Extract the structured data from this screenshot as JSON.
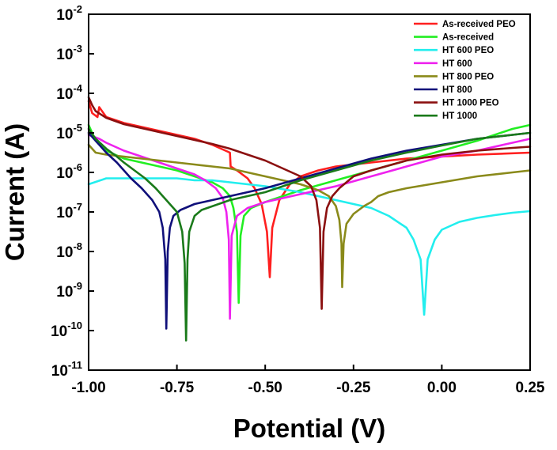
{
  "chart_data": {
    "type": "line",
    "title": "",
    "xlabel": "Potential (V)",
    "ylabel": "Current (A)",
    "xlim": [
      -1.0,
      0.25
    ],
    "ylim": [
      1e-11,
      0.01
    ],
    "yscale": "log",
    "grid": false,
    "legend_position": "top-right",
    "x_ticks": [
      {
        "value": -1.0,
        "label": "-1.00"
      },
      {
        "value": -0.75,
        "label": "-0.75"
      },
      {
        "value": -0.5,
        "label": "-0.50"
      },
      {
        "value": -0.25,
        "label": "-0.25"
      },
      {
        "value": 0.0,
        "label": "0.00"
      },
      {
        "value": 0.25,
        "label": "0.25"
      }
    ],
    "y_ticks": [
      {
        "exp": -11,
        "base": "10",
        "sup": "-11"
      },
      {
        "exp": -10,
        "base": "10",
        "sup": "-10"
      },
      {
        "exp": -9,
        "base": "10",
        "sup": "-9"
      },
      {
        "exp": -8,
        "base": "10",
        "sup": "-8"
      },
      {
        "exp": -7,
        "base": "10",
        "sup": "-7"
      },
      {
        "exp": -6,
        "base": "10",
        "sup": "-6"
      },
      {
        "exp": -5,
        "base": "10",
        "sup": "-5"
      },
      {
        "exp": -4,
        "base": "10",
        "sup": "-4"
      },
      {
        "exp": -3,
        "base": "10",
        "sup": "-3"
      },
      {
        "exp": -2,
        "base": "10",
        "sup": "-2"
      }
    ],
    "series": [
      {
        "name": "As-received PEO",
        "color": "#ff1f1f",
        "points": [
          [
            -1.0,
            -4.2
          ],
          [
            -0.99,
            -4.5
          ],
          [
            -0.975,
            -4.6
          ],
          [
            -0.97,
            -4.35
          ],
          [
            -0.95,
            -4.6
          ],
          [
            -0.9,
            -4.75
          ],
          [
            -0.85,
            -4.85
          ],
          [
            -0.8,
            -4.95
          ],
          [
            -0.75,
            -5.05
          ],
          [
            -0.7,
            -5.15
          ],
          [
            -0.65,
            -5.3
          ],
          [
            -0.6,
            -5.5
          ],
          [
            -0.598,
            -5.85
          ],
          [
            -0.58,
            -5.95
          ],
          [
            -0.55,
            -6.15
          ],
          [
            -0.53,
            -6.4
          ],
          [
            -0.51,
            -6.8
          ],
          [
            -0.495,
            -7.5
          ],
          [
            -0.487,
            -8.65
          ],
          [
            -0.48,
            -7.4
          ],
          [
            -0.46,
            -6.7
          ],
          [
            -0.43,
            -6.3
          ],
          [
            -0.4,
            -6.1
          ],
          [
            -0.35,
            -5.95
          ],
          [
            -0.3,
            -5.85
          ],
          [
            -0.2,
            -5.75
          ],
          [
            -0.1,
            -5.65
          ],
          [
            0.0,
            -5.6
          ],
          [
            0.1,
            -5.55
          ],
          [
            0.25,
            -5.5
          ]
        ]
      },
      {
        "name": "As-received",
        "color": "#22ee22",
        "points": [
          [
            -1.0,
            -4.8
          ],
          [
            -0.98,
            -5.2
          ],
          [
            -0.95,
            -5.45
          ],
          [
            -0.9,
            -5.65
          ],
          [
            -0.85,
            -5.75
          ],
          [
            -0.8,
            -5.85
          ],
          [
            -0.75,
            -5.95
          ],
          [
            -0.7,
            -6.1
          ],
          [
            -0.65,
            -6.25
          ],
          [
            -0.62,
            -6.4
          ],
          [
            -0.6,
            -6.6
          ],
          [
            -0.59,
            -6.9
          ],
          [
            -0.58,
            -7.5
          ],
          [
            -0.575,
            -9.3
          ],
          [
            -0.57,
            -7.6
          ],
          [
            -0.56,
            -7.1
          ],
          [
            -0.54,
            -6.9
          ],
          [
            -0.5,
            -6.75
          ],
          [
            -0.45,
            -6.6
          ],
          [
            -0.4,
            -6.45
          ],
          [
            -0.3,
            -6.2
          ],
          [
            -0.2,
            -5.95
          ],
          [
            -0.1,
            -5.7
          ],
          [
            0.0,
            -5.45
          ],
          [
            0.1,
            -5.2
          ],
          [
            0.2,
            -4.9
          ],
          [
            0.25,
            -4.8
          ]
        ]
      },
      {
        "name": "HT 600 PEO",
        "color": "#22eeee",
        "points": [
          [
            -1.0,
            -6.3
          ],
          [
            -0.95,
            -6.15
          ],
          [
            -0.9,
            -6.15
          ],
          [
            -0.85,
            -6.15
          ],
          [
            -0.8,
            -6.15
          ],
          [
            -0.75,
            -6.15
          ],
          [
            -0.7,
            -6.2
          ],
          [
            -0.65,
            -6.2
          ],
          [
            -0.6,
            -6.25
          ],
          [
            -0.5,
            -6.35
          ],
          [
            -0.4,
            -6.5
          ],
          [
            -0.3,
            -6.7
          ],
          [
            -0.2,
            -6.9
          ],
          [
            -0.15,
            -7.1
          ],
          [
            -0.1,
            -7.4
          ],
          [
            -0.08,
            -7.7
          ],
          [
            -0.06,
            -8.2
          ],
          [
            -0.05,
            -9.6
          ],
          [
            -0.04,
            -8.2
          ],
          [
            -0.02,
            -7.7
          ],
          [
            0.0,
            -7.45
          ],
          [
            0.05,
            -7.25
          ],
          [
            0.1,
            -7.15
          ],
          [
            0.15,
            -7.08
          ],
          [
            0.2,
            -7.02
          ],
          [
            0.25,
            -6.98
          ]
        ]
      },
      {
        "name": "HT 600",
        "color": "#ee22ee",
        "points": [
          [
            -1.0,
            -5.05
          ],
          [
            -0.97,
            -5.15
          ],
          [
            -0.95,
            -5.25
          ],
          [
            -0.9,
            -5.45
          ],
          [
            -0.85,
            -5.6
          ],
          [
            -0.8,
            -5.75
          ],
          [
            -0.75,
            -5.9
          ],
          [
            -0.7,
            -6.05
          ],
          [
            -0.67,
            -6.2
          ],
          [
            -0.64,
            -6.4
          ],
          [
            -0.62,
            -6.65
          ],
          [
            -0.61,
            -7.0
          ],
          [
            -0.603,
            -7.7
          ],
          [
            -0.6,
            -9.7
          ],
          [
            -0.595,
            -7.6
          ],
          [
            -0.58,
            -7.1
          ],
          [
            -0.55,
            -6.9
          ],
          [
            -0.5,
            -6.75
          ],
          [
            -0.45,
            -6.65
          ],
          [
            -0.4,
            -6.55
          ],
          [
            -0.3,
            -6.35
          ],
          [
            -0.2,
            -6.1
          ],
          [
            -0.1,
            -5.85
          ],
          [
            0.0,
            -5.6
          ],
          [
            0.1,
            -5.45
          ],
          [
            0.2,
            -5.25
          ],
          [
            0.25,
            -5.15
          ]
        ]
      },
      {
        "name": "HT 800 PEO",
        "color": "#8a8a1a",
        "points": [
          [
            -1.0,
            -5.3
          ],
          [
            -0.98,
            -5.5
          ],
          [
            -0.95,
            -5.55
          ],
          [
            -0.9,
            -5.6
          ],
          [
            -0.85,
            -5.65
          ],
          [
            -0.8,
            -5.7
          ],
          [
            -0.75,
            -5.75
          ],
          [
            -0.7,
            -5.8
          ],
          [
            -0.65,
            -5.85
          ],
          [
            -0.6,
            -5.9
          ],
          [
            -0.55,
            -6.0
          ],
          [
            -0.5,
            -6.1
          ],
          [
            -0.45,
            -6.2
          ],
          [
            -0.4,
            -6.3
          ],
          [
            -0.35,
            -6.45
          ],
          [
            -0.32,
            -6.6
          ],
          [
            -0.3,
            -6.85
          ],
          [
            -0.29,
            -7.2
          ],
          [
            -0.284,
            -7.8
          ],
          [
            -0.282,
            -8.9
          ],
          [
            -0.278,
            -7.8
          ],
          [
            -0.27,
            -7.3
          ],
          [
            -0.25,
            -7.05
          ],
          [
            -0.22,
            -6.85
          ],
          [
            -0.2,
            -6.75
          ],
          [
            -0.18,
            -6.6
          ],
          [
            -0.15,
            -6.5
          ],
          [
            -0.1,
            -6.4
          ],
          [
            0.0,
            -6.25
          ],
          [
            0.1,
            -6.1
          ],
          [
            0.2,
            -6.0
          ],
          [
            0.25,
            -5.95
          ]
        ]
      },
      {
        "name": "HT 800",
        "color": "#10107a",
        "points": [
          [
            -1.0,
            -5.0
          ],
          [
            -0.98,
            -5.2
          ],
          [
            -0.95,
            -5.5
          ],
          [
            -0.92,
            -5.75
          ],
          [
            -0.9,
            -5.95
          ],
          [
            -0.88,
            -6.15
          ],
          [
            -0.85,
            -6.4
          ],
          [
            -0.82,
            -6.7
          ],
          [
            -0.8,
            -7.0
          ],
          [
            -0.79,
            -7.4
          ],
          [
            -0.783,
            -8.2
          ],
          [
            -0.78,
            -9.95
          ],
          [
            -0.776,
            -8.0
          ],
          [
            -0.77,
            -7.4
          ],
          [
            -0.76,
            -7.1
          ],
          [
            -0.74,
            -6.95
          ],
          [
            -0.7,
            -6.8
          ],
          [
            -0.6,
            -6.6
          ],
          [
            -0.5,
            -6.4
          ],
          [
            -0.4,
            -6.15
          ],
          [
            -0.3,
            -5.9
          ],
          [
            -0.2,
            -5.65
          ],
          [
            -0.1,
            -5.45
          ],
          [
            0.0,
            -5.3
          ],
          [
            0.1,
            -5.15
          ],
          [
            0.2,
            -5.05
          ],
          [
            0.25,
            -5.0
          ]
        ]
      },
      {
        "name": "HT 1000 PEO",
        "color": "#8b1010",
        "points": [
          [
            -1.0,
            -4.1
          ],
          [
            -0.99,
            -4.3
          ],
          [
            -0.98,
            -4.45
          ],
          [
            -0.95,
            -4.62
          ],
          [
            -0.9,
            -4.78
          ],
          [
            -0.85,
            -4.88
          ],
          [
            -0.8,
            -4.98
          ],
          [
            -0.75,
            -5.08
          ],
          [
            -0.7,
            -5.18
          ],
          [
            -0.65,
            -5.28
          ],
          [
            -0.6,
            -5.4
          ],
          [
            -0.55,
            -5.55
          ],
          [
            -0.5,
            -5.7
          ],
          [
            -0.45,
            -5.9
          ],
          [
            -0.4,
            -6.1
          ],
          [
            -0.37,
            -6.35
          ],
          [
            -0.355,
            -6.7
          ],
          [
            -0.345,
            -7.4
          ],
          [
            -0.34,
            -9.45
          ],
          [
            -0.335,
            -7.5
          ],
          [
            -0.325,
            -6.9
          ],
          [
            -0.31,
            -6.6
          ],
          [
            -0.29,
            -6.4
          ],
          [
            -0.25,
            -6.1
          ],
          [
            -0.2,
            -5.95
          ],
          [
            -0.1,
            -5.7
          ],
          [
            0.0,
            -5.55
          ],
          [
            0.1,
            -5.45
          ],
          [
            0.2,
            -5.38
          ],
          [
            0.25,
            -5.35
          ]
        ]
      },
      {
        "name": "HT 1000",
        "color": "#1a7a1a",
        "points": [
          [
            -1.0,
            -4.9
          ],
          [
            -0.98,
            -5.15
          ],
          [
            -0.95,
            -5.4
          ],
          [
            -0.92,
            -5.6
          ],
          [
            -0.9,
            -5.75
          ],
          [
            -0.87,
            -5.95
          ],
          [
            -0.84,
            -6.15
          ],
          [
            -0.81,
            -6.4
          ],
          [
            -0.78,
            -6.7
          ],
          [
            -0.75,
            -7.0
          ],
          [
            -0.735,
            -7.5
          ],
          [
            -0.728,
            -8.3
          ],
          [
            -0.724,
            -10.25
          ],
          [
            -0.72,
            -8.2
          ],
          [
            -0.715,
            -7.5
          ],
          [
            -0.7,
            -7.1
          ],
          [
            -0.68,
            -6.95
          ],
          [
            -0.6,
            -6.7
          ],
          [
            -0.5,
            -6.5
          ],
          [
            -0.4,
            -6.2
          ],
          [
            -0.3,
            -5.95
          ],
          [
            -0.2,
            -5.7
          ],
          [
            -0.1,
            -5.5
          ],
          [
            0.0,
            -5.32
          ],
          [
            0.1,
            -5.15
          ],
          [
            0.2,
            -5.05
          ],
          [
            0.25,
            -5.0
          ]
        ]
      }
    ]
  }
}
